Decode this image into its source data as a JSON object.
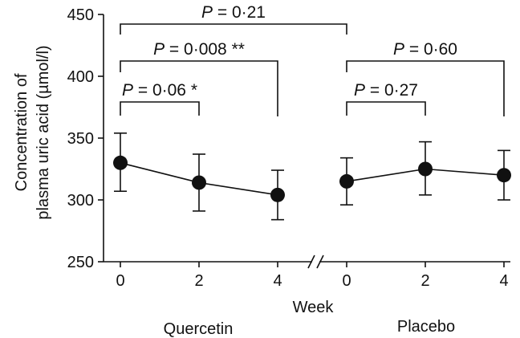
{
  "chart_data": {
    "type": "scatter",
    "xlabel": "Week",
    "ylabel_line1": "Concentration of",
    "ylabel_line2": "plasma uric acid (µmol/l)",
    "ylim": [
      250,
      450
    ],
    "yticks": [
      250,
      300,
      350,
      400,
      450
    ],
    "groups": [
      {
        "name": "Quercetin",
        "weeks": [
          0,
          2,
          4
        ],
        "values": [
          330,
          314,
          304
        ],
        "err_upper": [
          354,
          337,
          324
        ],
        "err_lower": [
          307,
          291,
          284
        ]
      },
      {
        "name": "Placebo",
        "weeks": [
          0,
          2,
          4
        ],
        "values": [
          315,
          325,
          320
        ],
        "err_upper": [
          334,
          347,
          340
        ],
        "err_lower": [
          296,
          304,
          300
        ]
      }
    ],
    "annotations": [
      {
        "id": "q0-p0",
        "text": "P = 0·21",
        "from": [
          0,
          0
        ],
        "to": [
          1,
          0
        ]
      },
      {
        "id": "q0-q4",
        "text": "P = 0·008 **",
        "from": [
          0,
          0
        ],
        "to": [
          0,
          2
        ]
      },
      {
        "id": "q0-q2",
        "text": "P = 0·06 *",
        "from": [
          0,
          0
        ],
        "to": [
          0,
          1
        ]
      },
      {
        "id": "p0-p4",
        "text": "P = 0·60",
        "from": [
          1,
          0
        ],
        "to": [
          1,
          2
        ]
      },
      {
        "id": "p0-p2",
        "text": "P = 0·27",
        "from": [
          1,
          0
        ],
        "to": [
          1,
          1
        ]
      }
    ],
    "axis_break": true,
    "grid": false
  }
}
